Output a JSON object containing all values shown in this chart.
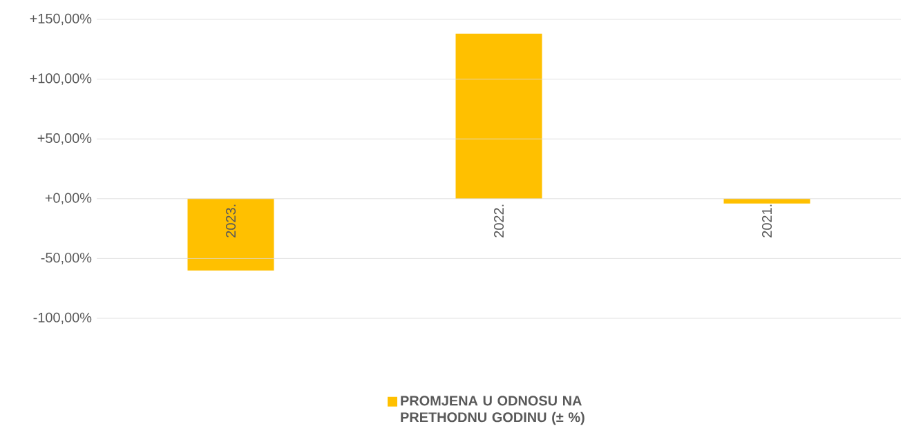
{
  "chart_data": {
    "type": "bar",
    "categories": [
      "2023.",
      "2022.",
      "2021."
    ],
    "series": [
      {
        "name": "**PROMJENA U ODNOSU NA PRETHODNU GODINU (± %)**",
        "color": "#ffc000",
        "values": [
          -60,
          138,
          -4
        ]
      }
    ],
    "ylim": [
      -100,
      150
    ],
    "yticks": [
      {
        "value": -100,
        "label": "-100,00%"
      },
      {
        "value": -50,
        "label": "-50,00%"
      },
      {
        "value": 0,
        "label": "+0,00%"
      },
      {
        "value": 50,
        "label": "+50,00%"
      },
      {
        "value": 100,
        "label": "+100,00%"
      },
      {
        "value": 150,
        "label": "+150,00%"
      }
    ],
    "grid": "y",
    "legend": "bottom"
  }
}
